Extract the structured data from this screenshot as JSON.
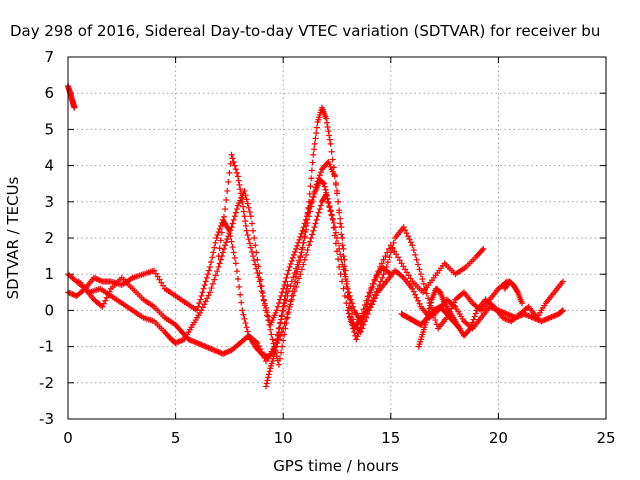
{
  "chart_data": {
    "type": "scatter",
    "title": "Day 298 of 2016, Sidereal Day-to-day VTEC variation (SDTVAR) for receiver bu",
    "xlabel": "GPS time / hours",
    "ylabel": "SDTVAR / TECUs",
    "xlim": [
      0,
      25
    ],
    "ylim": [
      -3,
      7
    ],
    "xticks": [
      "0",
      "5",
      "10",
      "15",
      "20",
      "25"
    ],
    "yticks": [
      "-3",
      "-2",
      "-1",
      "0",
      "1",
      "2",
      "3",
      "4",
      "5",
      "6",
      "7"
    ],
    "grid": true,
    "marker": "plus",
    "color": "#ff0000",
    "series": [
      {
        "x": [
          0.0,
          0.1,
          0.2,
          0.25,
          0.3
        ],
        "y": [
          6.2,
          6.0,
          5.8,
          5.7,
          5.6
        ]
      },
      {
        "x": [
          0.0,
          0.4,
          0.8,
          1.2,
          1.6,
          2.0,
          2.5,
          3.0,
          3.5,
          4.0,
          4.5,
          5.0,
          5.3,
          5.6,
          6.0,
          6.4,
          6.8,
          7.2,
          7.6,
          8.0,
          8.4,
          8.8,
          9.2,
          9.6,
          10.0,
          10.4,
          10.8,
          11.2,
          11.5,
          11.8,
          12.1,
          12.4,
          12.7,
          13.0,
          13.3,
          13.6,
          14.0,
          14.4,
          14.8,
          15.2,
          15.6,
          16.0,
          16.4,
          16.8,
          17.2,
          17.6,
          18.0,
          18.4,
          18.8,
          19.2,
          19.6,
          20.0,
          20.4,
          20.8,
          21.2,
          21.6,
          22.0,
          22.4,
          22.8,
          23.0
        ],
        "y": [
          1.0,
          0.8,
          0.6,
          0.3,
          0.1,
          0.6,
          0.9,
          0.6,
          0.3,
          0.1,
          -0.2,
          -0.4,
          -0.6,
          -0.8,
          -0.9,
          -1.0,
          -1.1,
          -1.2,
          -1.1,
          -0.9,
          -0.7,
          -0.9,
          -1.4,
          -1.0,
          0.0,
          0.8,
          1.5,
          2.6,
          3.4,
          3.9,
          4.1,
          3.7,
          2.3,
          0.5,
          -0.4,
          -0.6,
          0.0,
          0.5,
          0.8,
          1.1,
          0.9,
          0.6,
          0.1,
          -0.2,
          0.0,
          0.3,
          0.1,
          -0.3,
          -0.5,
          -0.2,
          0.1,
          0.0,
          -0.1,
          -0.2,
          -0.1,
          -0.2,
          -0.3,
          -0.2,
          -0.1,
          0.0
        ]
      },
      {
        "x": [
          0.0,
          0.4,
          0.8,
          1.2,
          1.6,
          2.0,
          2.5,
          3.0,
          3.5,
          4.0,
          4.5,
          5.0,
          5.5,
          6.0,
          6.3,
          6.6,
          6.9,
          7.2,
          7.5,
          7.8,
          8.1,
          8.4,
          8.7,
          9.0,
          9.3,
          9.6,
          10.0,
          10.4,
          10.8,
          11.2,
          11.5,
          11.8,
          12.0,
          12.3,
          12.6,
          13.0,
          13.3,
          13.6,
          14.0,
          14.5,
          15.0,
          15.5,
          16.0,
          16.5,
          17.0,
          17.5,
          18.0,
          18.5,
          19.0,
          19.3
        ],
        "y": [
          0.5,
          0.4,
          0.6,
          0.9,
          0.8,
          0.8,
          0.7,
          0.9,
          1.0,
          1.1,
          0.6,
          0.4,
          0.2,
          0.0,
          0.6,
          1.2,
          2.0,
          2.5,
          2.2,
          1.3,
          0.0,
          -0.7,
          -1.0,
          -1.2,
          -1.3,
          -1.1,
          -0.5,
          0.3,
          1.0,
          1.8,
          2.4,
          3.0,
          3.2,
          2.5,
          1.2,
          0.0,
          -0.5,
          -0.2,
          0.5,
          1.2,
          1.8,
          1.3,
          0.8,
          0.5,
          0.9,
          1.3,
          1.0,
          1.2,
          1.5,
          1.7
        ]
      },
      {
        "x": [
          0.5,
          1.0,
          1.5,
          2.0,
          2.5,
          3.0,
          3.5,
          4.0,
          4.5,
          4.8,
          5.0,
          5.4,
          5.8,
          6.2,
          6.6,
          7.0,
          7.3,
          7.6,
          7.9,
          8.2,
          8.5,
          8.8,
          9.1,
          9.4,
          9.7,
          10.0,
          10.3,
          10.6,
          10.9,
          11.2,
          11.5,
          11.7,
          11.9,
          12.1,
          12.4,
          12.7,
          13.0,
          13.3,
          13.6,
          14.0,
          14.4,
          14.8,
          15.2,
          15.6,
          16.0,
          16.4,
          16.8,
          17.2,
          17.6,
          18.0,
          18.4,
          18.8,
          19.2,
          19.6,
          20.0,
          20.4
        ],
        "y": [
          0.8,
          0.5,
          0.6,
          0.4,
          0.2,
          0.0,
          -0.2,
          -0.3,
          -0.6,
          -0.8,
          -0.9,
          -0.8,
          -0.4,
          0.0,
          0.5,
          1.2,
          1.8,
          2.3,
          2.9,
          3.3,
          2.6,
          1.4,
          0.3,
          -0.4,
          0.0,
          0.6,
          1.2,
          1.7,
          2.2,
          2.8,
          3.3,
          3.6,
          3.5,
          3.0,
          2.3,
          1.4,
          0.6,
          0.0,
          -0.3,
          0.1,
          0.6,
          1.2,
          2.0,
          2.3,
          1.8,
          1.0,
          0.2,
          -0.5,
          -0.2,
          0.3,
          0.5,
          0.2,
          0.0,
          0.3,
          0.6,
          0.8
        ]
      },
      {
        "x": [
          7.0,
          7.3,
          7.6,
          7.9,
          8.1,
          8.3,
          8.6,
          8.9,
          9.2,
          9.5,
          9.8,
          10.1,
          10.4,
          10.7,
          11.0,
          11.2,
          11.4,
          11.6,
          11.8,
          12.0,
          12.2,
          12.5,
          12.8,
          13.1,
          13.4,
          13.7,
          14.0,
          14.3,
          14.6,
          15.0
        ],
        "y": [
          1.5,
          2.8,
          4.3,
          3.7,
          3.0,
          2.2,
          1.5,
          0.8,
          0.0,
          -0.8,
          -1.5,
          -0.5,
          0.4,
          1.2,
          2.0,
          3.0,
          4.3,
          5.2,
          5.6,
          5.3,
          4.6,
          3.3,
          1.5,
          -0.2,
          -0.8,
          -0.3,
          0.4,
          0.9,
          1.2,
          1.0
        ]
      },
      {
        "x": [
          16.3,
          16.5,
          16.7,
          16.9,
          17.1,
          17.3,
          17.5,
          17.8,
          18.1,
          18.4,
          18.7,
          19.0,
          19.4,
          19.8,
          20.2,
          20.6,
          21.0,
          21.4,
          21.8,
          22.2,
          22.6,
          23.0
        ],
        "y": [
          -1.0,
          -0.6,
          -0.2,
          0.3,
          0.6,
          0.5,
          0.2,
          -0.1,
          -0.4,
          -0.7,
          -0.5,
          0.0,
          0.3,
          0.1,
          -0.2,
          -0.3,
          -0.1,
          0.1,
          -0.2,
          0.2,
          0.5,
          0.8
        ]
      },
      {
        "x": [
          15.5,
          15.8,
          16.1,
          16.4,
          16.7,
          17.0,
          17.3,
          17.6,
          17.9,
          18.2
        ],
        "y": [
          -0.1,
          -0.2,
          -0.3,
          -0.4,
          -0.2,
          0.0,
          0.1,
          -0.1,
          -0.3,
          -0.5
        ]
      },
      {
        "x": [
          20.3,
          20.5,
          20.7,
          20.9,
          21.1
        ],
        "y": [
          0.6,
          0.8,
          0.7,
          0.5,
          0.2
        ]
      },
      {
        "x": [
          9.2,
          9.4,
          9.6,
          9.8,
          10.0,
          10.2
        ],
        "y": [
          -2.1,
          -1.6,
          -1.2,
          -0.6,
          0.1,
          0.7
        ]
      }
    ]
  }
}
